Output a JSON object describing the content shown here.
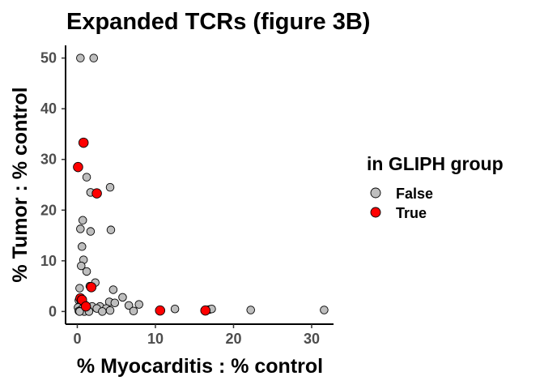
{
  "chart_data": {
    "type": "scatter",
    "title": "Expanded TCRs (figure 3B)",
    "xlabel": "% Myocarditis : % control",
    "ylabel": "% Tumor : % control",
    "xlim": [
      -1.5,
      32.8
    ],
    "ylim": [
      -2.5,
      52.5
    ],
    "xticks": [
      0,
      10,
      20,
      30
    ],
    "yticks": [
      0,
      10,
      20,
      30,
      40,
      50
    ],
    "grid": false,
    "legend": {
      "title": "in GLIPH group",
      "position": "right"
    },
    "series": [
      {
        "name": "False",
        "color": "#bebebe",
        "points": [
          [
            0.4,
            50.0
          ],
          [
            2.1,
            50.0
          ],
          [
            4.2,
            24.5
          ],
          [
            1.2,
            26.5
          ],
          [
            1.7,
            23.5
          ],
          [
            0.7,
            18.0
          ],
          [
            0.4,
            16.3
          ],
          [
            1.7,
            15.8
          ],
          [
            4.3,
            16.1
          ],
          [
            0.6,
            12.8
          ],
          [
            0.8,
            10.2
          ],
          [
            0.5,
            9.0
          ],
          [
            1.2,
            7.9
          ],
          [
            2.3,
            5.7
          ],
          [
            1.6,
            5.0
          ],
          [
            0.3,
            4.6
          ],
          [
            4.6,
            4.3
          ],
          [
            5.8,
            2.8
          ],
          [
            4.1,
            1.9
          ],
          [
            4.8,
            1.7
          ],
          [
            0.2,
            2.2
          ],
          [
            0.5,
            1.6
          ],
          [
            1.0,
            1.3
          ],
          [
            1.9,
            1.0
          ],
          [
            2.9,
            1.0
          ],
          [
            6.6,
            1.2
          ],
          [
            7.9,
            1.4
          ],
          [
            0.1,
            0.8
          ],
          [
            0.6,
            0.5
          ],
          [
            1.3,
            0.4
          ],
          [
            2.5,
            0.6
          ],
          [
            3.7,
            0.6
          ],
          [
            4.2,
            0.2
          ],
          [
            7.2,
            0.1
          ],
          [
            12.5,
            0.5
          ],
          [
            16.9,
            0.4
          ],
          [
            17.2,
            0.5
          ],
          [
            22.2,
            0.3
          ],
          [
            31.6,
            0.3
          ],
          [
            0.2,
            0.1
          ],
          [
            0.9,
            0.0
          ],
          [
            1.5,
            0.0
          ],
          [
            3.2,
            0.0
          ],
          [
            0.3,
            0.0
          ]
        ]
      },
      {
        "name": "True",
        "color": "#ff0000",
        "points": [
          [
            0.8,
            33.3
          ],
          [
            0.1,
            28.5
          ],
          [
            2.5,
            23.3
          ],
          [
            1.8,
            4.8
          ],
          [
            0.4,
            2.6
          ],
          [
            0.6,
            2.3
          ],
          [
            1.1,
            1.0
          ],
          [
            10.6,
            0.2
          ],
          [
            16.4,
            0.2
          ]
        ]
      }
    ]
  }
}
